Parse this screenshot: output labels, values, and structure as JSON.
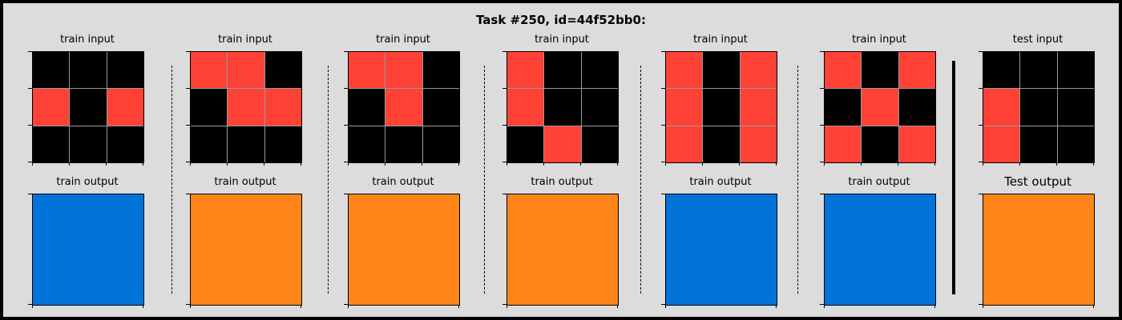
{
  "title": "Task #250, id=44f52bb0:",
  "colors": {
    "0": "#000000",
    "1": "#0074D9",
    "2": "#FF4136",
    "7": "#FF851B"
  },
  "pairs": [
    {
      "input_label": "train input",
      "output_label": "train output",
      "input": [
        [
          0,
          0,
          0
        ],
        [
          2,
          0,
          2
        ],
        [
          0,
          0,
          0
        ]
      ],
      "output": [
        [
          1
        ]
      ]
    },
    {
      "input_label": "train input",
      "output_label": "train output",
      "input": [
        [
          2,
          2,
          0
        ],
        [
          0,
          2,
          2
        ],
        [
          0,
          0,
          0
        ]
      ],
      "output": [
        [
          7
        ]
      ]
    },
    {
      "input_label": "train input",
      "output_label": "train output",
      "input": [
        [
          2,
          2,
          0
        ],
        [
          0,
          2,
          0
        ],
        [
          0,
          0,
          0
        ]
      ],
      "output": [
        [
          7
        ]
      ]
    },
    {
      "input_label": "train input",
      "output_label": "train output",
      "input": [
        [
          2,
          0,
          0
        ],
        [
          2,
          0,
          0
        ],
        [
          0,
          2,
          0
        ]
      ],
      "output": [
        [
          7
        ]
      ]
    },
    {
      "input_label": "train input",
      "output_label": "train output",
      "input": [
        [
          2,
          0,
          2
        ],
        [
          2,
          0,
          2
        ],
        [
          2,
          0,
          2
        ]
      ],
      "output": [
        [
          1
        ]
      ]
    },
    {
      "input_label": "train input",
      "output_label": "train output",
      "input": [
        [
          2,
          0,
          2
        ],
        [
          0,
          2,
          0
        ],
        [
          2,
          0,
          2
        ]
      ],
      "output": [
        [
          1
        ]
      ]
    },
    {
      "input_label": "test input",
      "output_label": "Test output",
      "input": [
        [
          0,
          0,
          0
        ],
        [
          2,
          0,
          0
        ],
        [
          2,
          0,
          0
        ]
      ],
      "output": [
        [
          7
        ]
      ]
    }
  ]
}
